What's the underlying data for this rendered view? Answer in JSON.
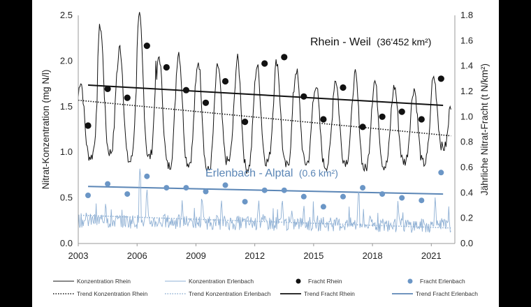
{
  "chart_data": {
    "type": "line",
    "ylabel": "Nitrat-Konzentration (mg N/l)",
    "y2label": "Jährliche Nitrat-Fracht (t N/km²)",
    "ylim": [
      0,
      2.5
    ],
    "y2lim": [
      0,
      1.8
    ],
    "xlim": [
      2003,
      2022.2
    ],
    "yticks": [
      "0.0",
      "0.5",
      "1.0",
      "1.5",
      "2.0",
      "2.5"
    ],
    "y2ticks": [
      "0.0",
      "0.2",
      "0.4",
      "0.6",
      "0.8",
      "1.0",
      "1.2",
      "1.4",
      "1.6",
      "1.8"
    ],
    "xticks": [
      "2003",
      "2006",
      "2009",
      "2012",
      "2015",
      "2018",
      "2021"
    ],
    "annotations": {
      "rhein": {
        "name": "Rhein - Weil",
        "area": "(36'452 km²)",
        "color": "#111111"
      },
      "erlenbach": {
        "name": "Erlenbach - Alptal",
        "area": "(0.6 km²)",
        "color": "#5b86b6"
      }
    },
    "colors": {
      "rhein": "#111111",
      "erlenbach": "#8fb0d4",
      "erlenbach_dot": "#6b96c6",
      "trend_erlenbach": "#5b86b6"
    },
    "series": [
      {
        "name": "Fracht Rhein",
        "axis": "y2",
        "kind": "scatter",
        "x": [
          2003.5,
          2004.5,
          2005.5,
          2006.5,
          2007.5,
          2008.5,
          2009.5,
          2010.5,
          2011.5,
          2012.5,
          2013.5,
          2014.5,
          2015.5,
          2016.5,
          2017.5,
          2018.5,
          2019.5,
          2020.5,
          2021.5
        ],
        "y": [
          0.93,
          1.22,
          1.15,
          1.56,
          1.39,
          1.21,
          1.11,
          1.28,
          0.96,
          1.42,
          1.47,
          1.16,
          0.98,
          1.23,
          0.92,
          1.0,
          1.04,
          0.98,
          1.3
        ]
      },
      {
        "name": "Fracht Erlenbach",
        "axis": "y2",
        "kind": "scatter",
        "x": [
          2003.5,
          2004.5,
          2005.5,
          2006.5,
          2007.5,
          2008.5,
          2009.5,
          2010.5,
          2011.5,
          2012.5,
          2013.5,
          2014.5,
          2015.5,
          2016.5,
          2017.5,
          2018.5,
          2019.5,
          2020.5,
          2021.5
        ],
        "y": [
          0.38,
          0.47,
          0.39,
          0.53,
          0.44,
          0.44,
          0.41,
          0.46,
          0.33,
          0.42,
          0.42,
          0.37,
          0.29,
          0.37,
          0.44,
          0.39,
          0.36,
          0.34,
          0.56
        ]
      },
      {
        "name": "Trend Fracht Rhein",
        "axis": "y2",
        "kind": "line",
        "x": [
          2003.5,
          2021.6
        ],
        "y": [
          1.25,
          1.09
        ]
      },
      {
        "name": "Trend Fracht Erlenbach",
        "axis": "y2",
        "kind": "line",
        "x": [
          2003.5,
          2021.6
        ],
        "y": [
          0.45,
          0.39
        ]
      },
      {
        "name": "Trend Konzentration Rhein",
        "axis": "y",
        "kind": "dotted",
        "x": [
          2003.0,
          2022.0
        ],
        "y": [
          1.57,
          1.18
        ]
      },
      {
        "name": "Trend Konzentration Erlenbach",
        "axis": "y",
        "kind": "dotted",
        "x": [
          2003.0,
          2022.0
        ],
        "y": [
          0.31,
          0.17
        ]
      },
      {
        "name": "Konzentration Rhein",
        "axis": "y",
        "kind": "seasonal",
        "years": [
          2003,
          2004,
          2005,
          2006,
          2007,
          2008,
          2009,
          2010,
          2011,
          2012,
          2013,
          2014,
          2015,
          2016,
          2017,
          2018,
          2019,
          2020,
          2021,
          2022
        ],
        "winter_peak": [
          1.78,
          2.38,
          2.15,
          2.48,
          2.05,
          2.1,
          2.0,
          1.95,
          2.02,
          1.95,
          2.0,
          1.9,
          1.75,
          1.8,
          1.85,
          1.78,
          1.72,
          1.7,
          1.82,
          1.62
        ],
        "summer_low": [
          0.95,
          1.0,
          0.9,
          0.95,
          0.85,
          0.88,
          0.8,
          0.9,
          0.82,
          0.9,
          0.85,
          0.88,
          0.85,
          0.9,
          0.82,
          0.85,
          0.9,
          0.88,
          1.05,
          1.1
        ]
      },
      {
        "name": "Konzentration Erlenbach",
        "axis": "y",
        "kind": "noisy",
        "x_start": 2003.0,
        "x_end": 2022.0,
        "base": 0.26,
        "base_end": 0.2,
        "spikes": [
          {
            "x": 2004.4,
            "y": 0.48
          },
          {
            "x": 2006.15,
            "y": 0.85
          },
          {
            "x": 2006.5,
            "y": 0.62
          },
          {
            "x": 2008.3,
            "y": 0.48
          },
          {
            "x": 2009.3,
            "y": 0.55
          },
          {
            "x": 2010.3,
            "y": 0.5
          },
          {
            "x": 2012.2,
            "y": 0.5
          },
          {
            "x": 2013.4,
            "y": 0.52
          },
          {
            "x": 2014.5,
            "y": 0.45
          },
          {
            "x": 2017.3,
            "y": 0.62
          },
          {
            "x": 2019.3,
            "y": 0.48
          },
          {
            "x": 2021.2,
            "y": 0.52
          }
        ]
      }
    ],
    "legend": [
      {
        "label": "Konzentration Rhein",
        "style": "solid-thin",
        "color": "#111111"
      },
      {
        "label": "Konzentration Erlenbach",
        "style": "solid-thin",
        "color": "#8fb0d4"
      },
      {
        "label": "Fracht Rhein",
        "style": "dot",
        "color": "#111111"
      },
      {
        "label": "Fracht Erlenbach",
        "style": "dot",
        "color": "#6b96c6"
      },
      {
        "label": "Trend Konzentration Rhein",
        "style": "dotted",
        "color": "#111111"
      },
      {
        "label": "Trend Konzentration Erlenbach",
        "style": "dotted",
        "color": "#8fb0d4"
      },
      {
        "label": "Trend Fracht Rhein",
        "style": "solid-thick",
        "color": "#111111"
      },
      {
        "label": "Trend Fracht Erlenbach",
        "style": "solid-thick",
        "color": "#5b86b6"
      }
    ]
  }
}
